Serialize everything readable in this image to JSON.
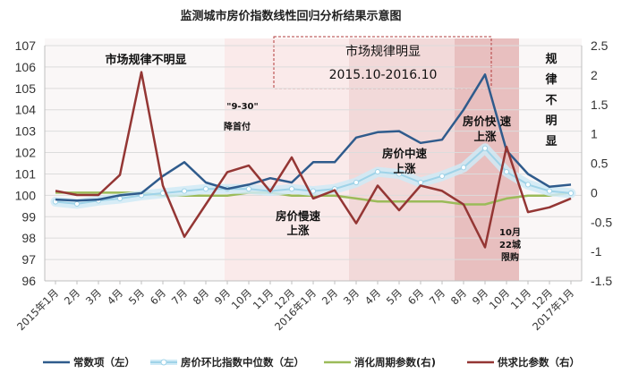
{
  "chart_data": {
    "type": "line",
    "title": "监测城市房价指数线性回归分析结果示意图",
    "categories": [
      "2015年1月",
      "2月",
      "3月",
      "4月",
      "5月",
      "6月",
      "7月",
      "8月",
      "9月",
      "10月",
      "11月",
      "12月",
      "2016年1月",
      "2月",
      "3月",
      "4月",
      "5月",
      "6月",
      "7月",
      "8月",
      "9月",
      "10月",
      "11月",
      "12月",
      "2017年1月"
    ],
    "y_left": {
      "min": 96,
      "max": 107,
      "step": 1,
      "ticks": [
        "96",
        "97",
        "98",
        "99",
        "100",
        "101",
        "102",
        "103",
        "104",
        "105",
        "106",
        "107"
      ]
    },
    "y_right": {
      "min": -1.5,
      "max": 2.5,
      "step": 0.5,
      "ticks": [
        "-1.5",
        "-1",
        "-0.5",
        "0",
        "0.5",
        "1",
        "1.5",
        "2",
        "2.5"
      ]
    },
    "series": [
      {
        "name": "常数项（左）",
        "axis": "left",
        "color": "#2f5b8c",
        "values": [
          99.8,
          99.75,
          99.8,
          100.0,
          100.1,
          100.9,
          101.55,
          100.6,
          100.3,
          100.5,
          100.8,
          100.6,
          101.55,
          101.55,
          102.7,
          102.95,
          103.0,
          102.45,
          102.6,
          104.0,
          105.65,
          102.1,
          101.0,
          100.4,
          100.5
        ]
      },
      {
        "name": "房价环比指数中位数（左）",
        "axis": "left",
        "color": "#9fd3e8",
        "values": [
          99.7,
          99.6,
          99.75,
          99.85,
          100.0,
          100.1,
          100.2,
          100.3,
          100.3,
          100.3,
          100.2,
          100.3,
          100.2,
          100.3,
          100.6,
          101.1,
          101.0,
          100.6,
          100.9,
          101.3,
          102.2,
          101.1,
          100.5,
          100.2,
          100.1
        ]
      },
      {
        "name": "消化周期参数(右)",
        "axis": "right",
        "color": "#9bbb59",
        "values": [
          0.0,
          0.0,
          0.0,
          0.0,
          0.0,
          -0.05,
          -0.05,
          -0.05,
          -0.05,
          0.0,
          0.0,
          -0.05,
          -0.05,
          -0.05,
          -0.1,
          -0.15,
          -0.15,
          -0.15,
          -0.15,
          -0.2,
          -0.2,
          -0.1,
          -0.05,
          -0.05,
          0.0
        ]
      },
      {
        "name": "供求比参数（右）",
        "axis": "right",
        "color": "#943634",
        "values": [
          0.03,
          -0.04,
          -0.04,
          0.3,
          2.05,
          0.12,
          -0.75,
          -0.2,
          0.35,
          0.46,
          0.02,
          0.6,
          -0.1,
          0.04,
          -0.52,
          0.12,
          -0.3,
          0.12,
          0.03,
          -0.2,
          -0.93,
          0.78,
          -0.33,
          -0.25,
          -0.1
        ]
      }
    ],
    "annotations": {
      "left": "市场规律不明显",
      "box_line1": "市场规律明显",
      "box_line2": "2015.10-2016.10",
      "right": [
        "规",
        "律",
        "不",
        "明",
        "显"
      ],
      "policy_line1": "\"9-30\"",
      "policy_line2": "降首付",
      "slow_line1": "房价慢速",
      "slow_line2": "上涨",
      "mid_line1": "房价中速",
      "mid_line2": "上涨",
      "fast_line1": "房价快 速",
      "fast_line2": "上涨",
      "limit_line1": "10月",
      "limit_line2": "22城",
      "limit_line3": "限购"
    }
  }
}
